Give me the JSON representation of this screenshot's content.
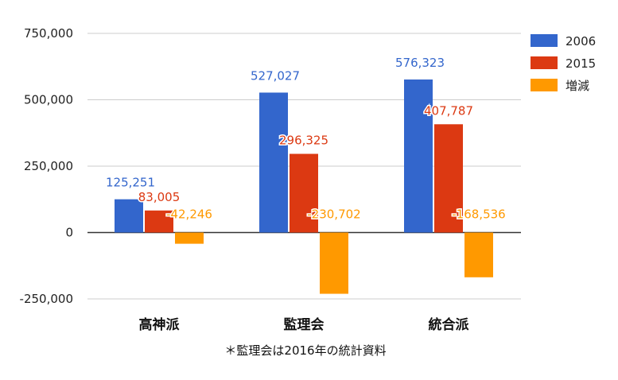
{
  "chart_data": {
    "type": "bar",
    "categories": [
      "高神派",
      "監理会",
      "統合派"
    ],
    "series": [
      {
        "name": "2006",
        "values": [
          125251,
          527027,
          576323
        ],
        "labels": [
          "125,251",
          "527,027",
          "576,323"
        ],
        "color": "#3366cc",
        "label_color": "#3366cc"
      },
      {
        "name": "2015",
        "values": [
          83005,
          296325,
          407787
        ],
        "labels": [
          "83,005",
          "296,325",
          "407,787"
        ],
        "color": "#dc3912",
        "label_color": "#dc3912"
      },
      {
        "name": "増減",
        "values": [
          -42246,
          -230702,
          -168536
        ],
        "labels": [
          "-42,246",
          "-230,702",
          "-168,536"
        ],
        "color": "#ff9900",
        "label_color": "#ff9900"
      }
    ],
    "ylim": [
      -250000,
      750000
    ],
    "yticks": [
      750000,
      500000,
      250000,
      0,
      -250000
    ],
    "ytick_labels": [
      "750,000",
      "500,000",
      "250,000",
      "0",
      "-250,000"
    ],
    "grid": true,
    "legend_position": "right",
    "footnote": "＊監理会は2016年の統計資料"
  }
}
